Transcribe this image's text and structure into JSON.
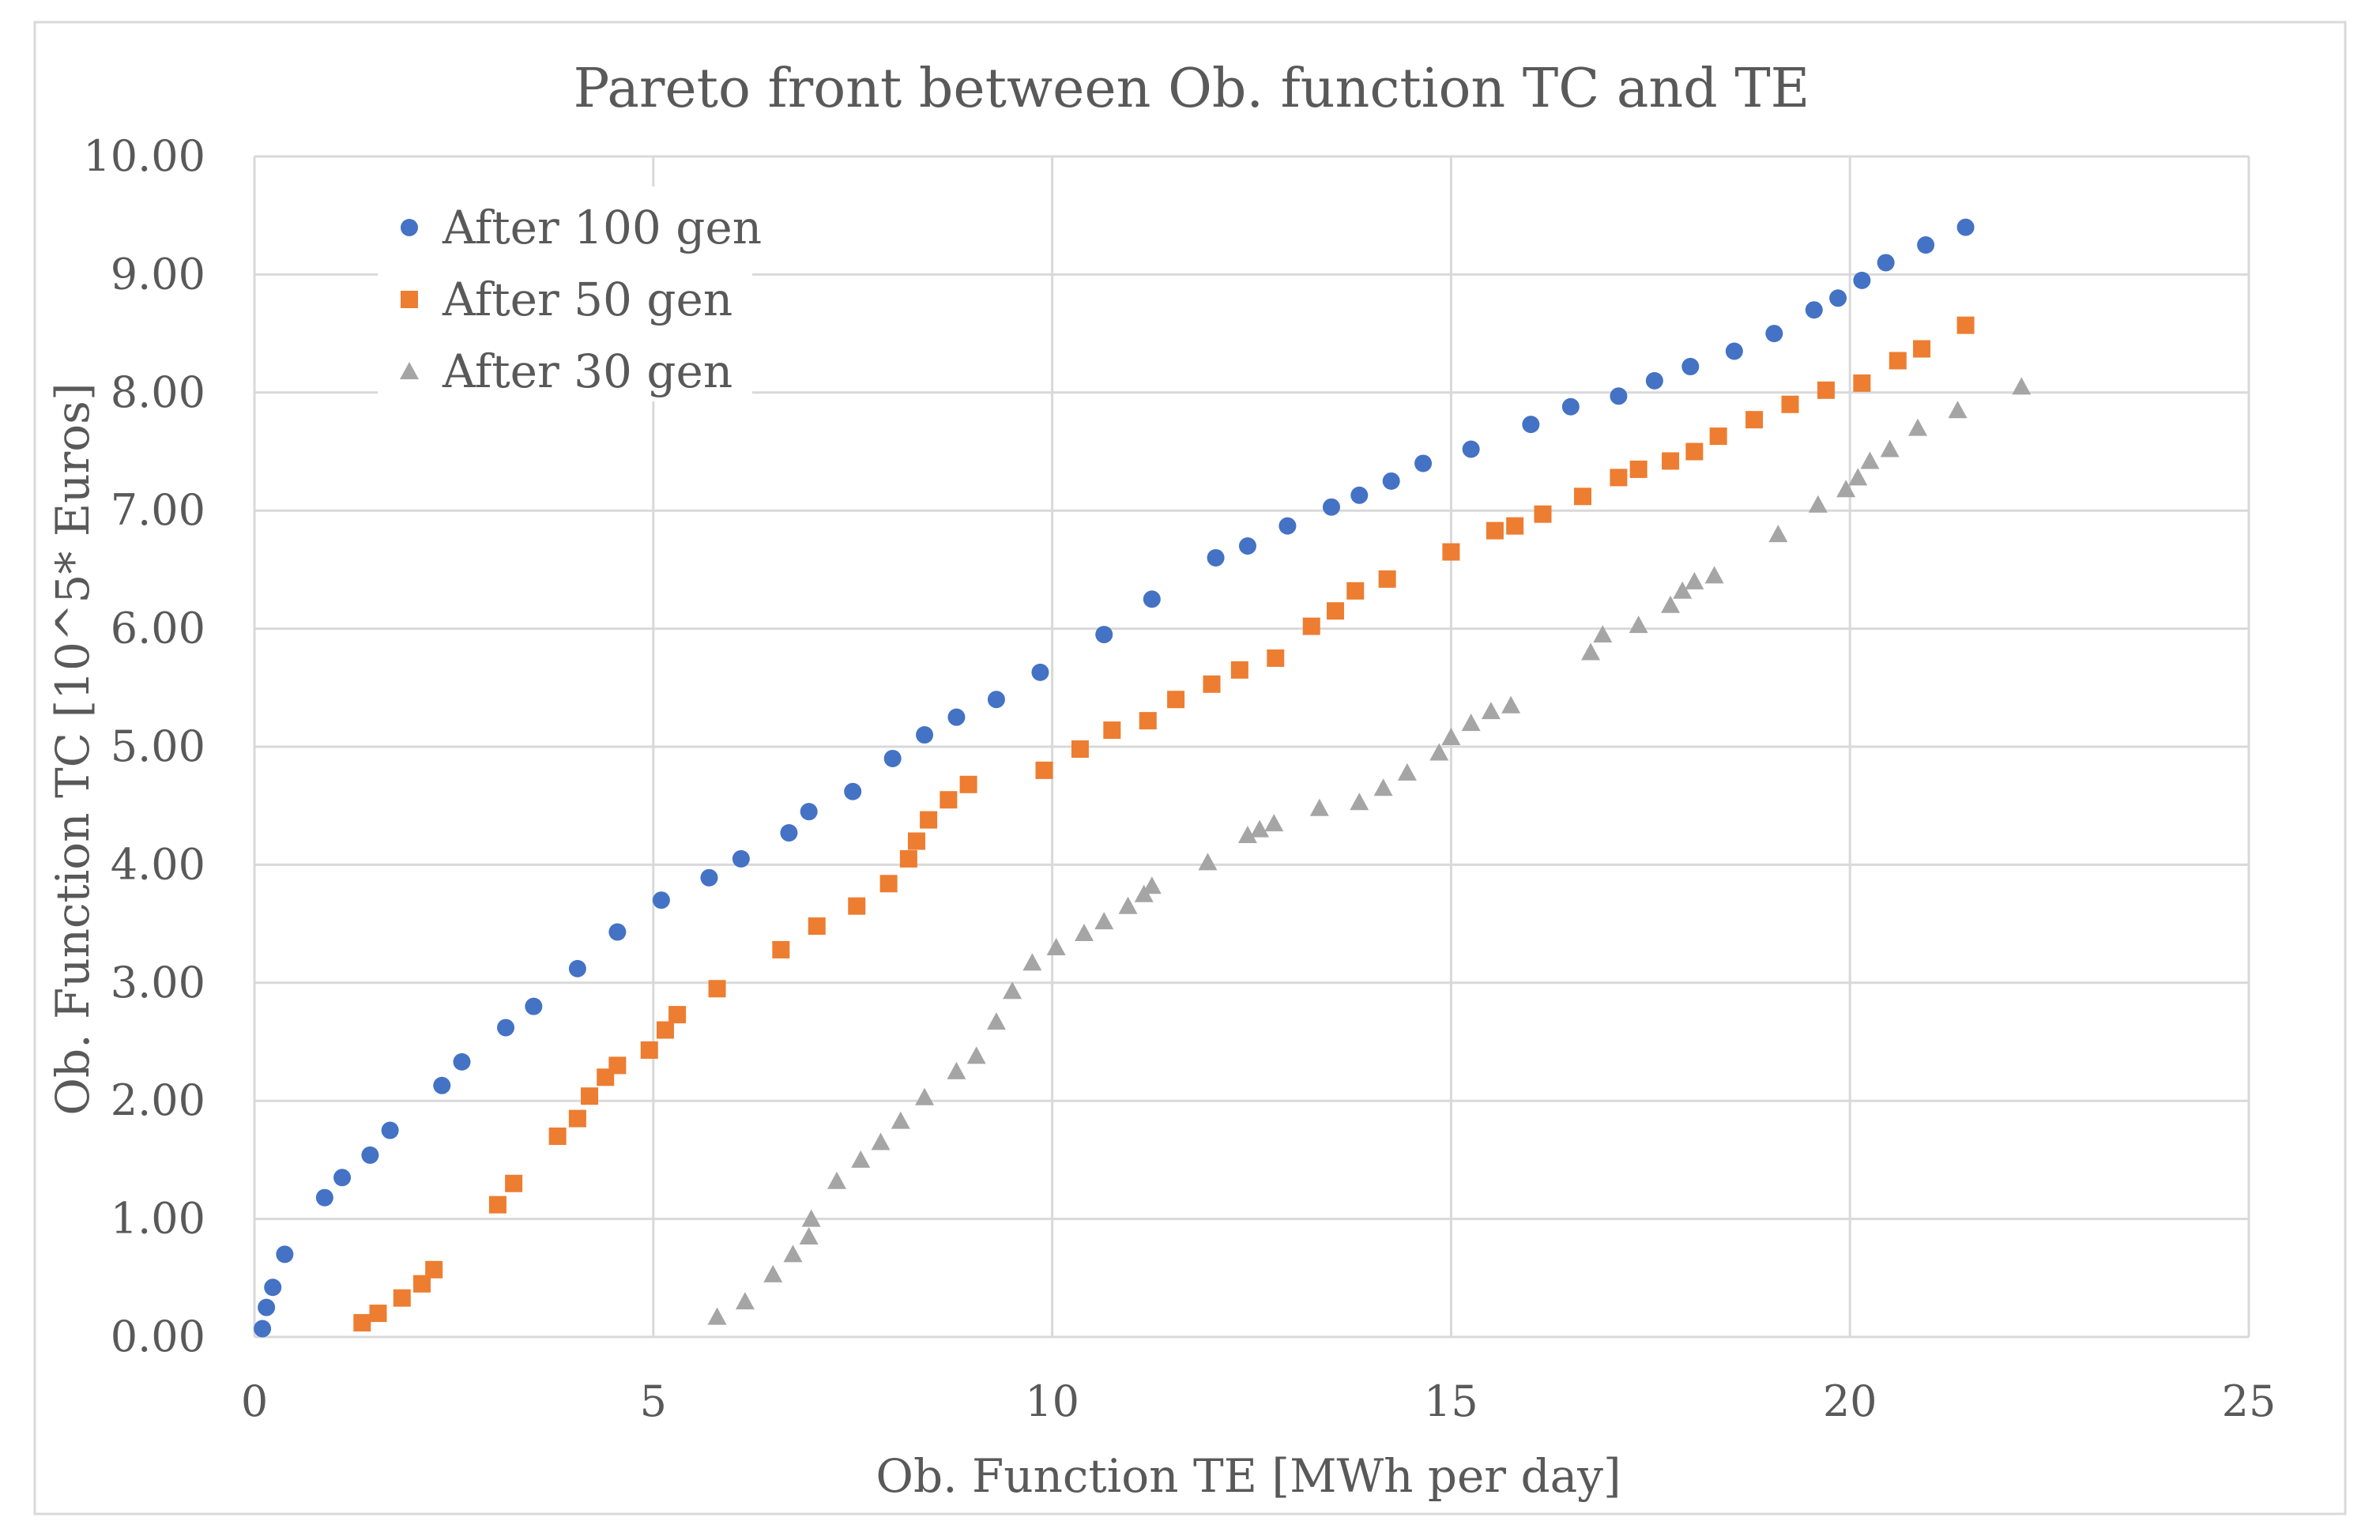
{
  "chart_data": {
    "type": "scatter",
    "title": "Pareto front between Ob. function TC and TE",
    "xlabel": "Ob. Function TE [MWh per day]",
    "ylabel": "Ob. Function TC [10^5* Euros]",
    "xlim": [
      0,
      25
    ],
    "ylim": [
      0,
      10
    ],
    "x_ticks": [
      0,
      5,
      10,
      15,
      20,
      25
    ],
    "x_tick_labels": [
      "0",
      "5",
      "10",
      "15",
      "20",
      "25"
    ],
    "y_ticks": [
      0,
      1,
      2,
      3,
      4,
      5,
      6,
      7,
      8,
      9,
      10
    ],
    "y_tick_labels": [
      "0.00",
      "1.00",
      "2.00",
      "3.00",
      "4.00",
      "5.00",
      "6.00",
      "7.00",
      "8.00",
      "9.00",
      "10.00"
    ],
    "grid": true,
    "legend_position": "top-left",
    "series": [
      {
        "name": "After 100 gen",
        "marker": "circle",
        "color": "#4472C4",
        "points": [
          [
            0.1,
            0.07
          ],
          [
            0.15,
            0.25
          ],
          [
            0.23,
            0.42
          ],
          [
            0.38,
            0.7
          ],
          [
            0.88,
            1.18
          ],
          [
            1.1,
            1.35
          ],
          [
            1.45,
            1.54
          ],
          [
            1.7,
            1.75
          ],
          [
            2.35,
            2.13
          ],
          [
            2.6,
            2.33
          ],
          [
            3.15,
            2.62
          ],
          [
            3.5,
            2.8
          ],
          [
            4.05,
            3.12
          ],
          [
            4.55,
            3.43
          ],
          [
            5.1,
            3.7
          ],
          [
            5.7,
            3.89
          ],
          [
            6.1,
            4.05
          ],
          [
            6.7,
            4.27
          ],
          [
            6.95,
            4.45
          ],
          [
            7.5,
            4.62
          ],
          [
            8.0,
            4.9
          ],
          [
            8.4,
            5.1
          ],
          [
            8.8,
            5.25
          ],
          [
            9.3,
            5.4
          ],
          [
            9.85,
            5.63
          ],
          [
            10.65,
            5.95
          ],
          [
            11.25,
            6.25
          ],
          [
            12.05,
            6.6
          ],
          [
            12.45,
            6.7
          ],
          [
            12.95,
            6.87
          ],
          [
            13.5,
            7.03
          ],
          [
            13.85,
            7.13
          ],
          [
            14.25,
            7.25
          ],
          [
            14.65,
            7.4
          ],
          [
            15.25,
            7.52
          ],
          [
            16.0,
            7.73
          ],
          [
            16.5,
            7.88
          ],
          [
            17.1,
            7.97
          ],
          [
            17.55,
            8.1
          ],
          [
            18.0,
            8.22
          ],
          [
            18.55,
            8.35
          ],
          [
            19.05,
            8.5
          ],
          [
            19.55,
            8.7
          ],
          [
            19.85,
            8.8
          ],
          [
            20.15,
            8.95
          ],
          [
            20.45,
            9.1
          ],
          [
            20.95,
            9.25
          ],
          [
            21.45,
            9.4
          ]
        ]
      },
      {
        "name": "After 50 gen",
        "marker": "square",
        "color": "#ED7D31",
        "points": [
          [
            1.35,
            0.12
          ],
          [
            1.55,
            0.2
          ],
          [
            1.85,
            0.33
          ],
          [
            2.1,
            0.45
          ],
          [
            2.25,
            0.57
          ],
          [
            3.05,
            1.12
          ],
          [
            3.25,
            1.3
          ],
          [
            3.8,
            1.7
          ],
          [
            4.05,
            1.85
          ],
          [
            4.2,
            2.04
          ],
          [
            4.4,
            2.2
          ],
          [
            4.55,
            2.3
          ],
          [
            4.95,
            2.43
          ],
          [
            5.15,
            2.6
          ],
          [
            5.3,
            2.73
          ],
          [
            5.8,
            2.95
          ],
          [
            6.6,
            3.28
          ],
          [
            7.05,
            3.48
          ],
          [
            7.55,
            3.65
          ],
          [
            7.95,
            3.84
          ],
          [
            8.2,
            4.05
          ],
          [
            8.3,
            4.2
          ],
          [
            8.45,
            4.38
          ],
          [
            8.7,
            4.55
          ],
          [
            8.95,
            4.68
          ],
          [
            9.9,
            4.8
          ],
          [
            10.35,
            4.98
          ],
          [
            10.75,
            5.14
          ],
          [
            11.2,
            5.22
          ],
          [
            11.55,
            5.4
          ],
          [
            12.0,
            5.53
          ],
          [
            12.35,
            5.65
          ],
          [
            12.8,
            5.75
          ],
          [
            13.25,
            6.02
          ],
          [
            13.55,
            6.15
          ],
          [
            13.8,
            6.32
          ],
          [
            14.2,
            6.42
          ],
          [
            15.0,
            6.65
          ],
          [
            15.55,
            6.83
          ],
          [
            15.8,
            6.87
          ],
          [
            16.15,
            6.97
          ],
          [
            16.65,
            7.12
          ],
          [
            17.1,
            7.28
          ],
          [
            17.35,
            7.35
          ],
          [
            17.75,
            7.42
          ],
          [
            18.05,
            7.5
          ],
          [
            18.35,
            7.63
          ],
          [
            18.8,
            7.77
          ],
          [
            19.25,
            7.9
          ],
          [
            19.7,
            8.02
          ],
          [
            20.15,
            8.08
          ],
          [
            20.6,
            8.27
          ],
          [
            20.9,
            8.37
          ],
          [
            21.45,
            8.57
          ]
        ]
      },
      {
        "name": "After 30 gen",
        "marker": "triangle",
        "color": "#A5A5A5",
        "points": [
          [
            5.8,
            0.17
          ],
          [
            6.15,
            0.3
          ],
          [
            6.5,
            0.53
          ],
          [
            6.75,
            0.7
          ],
          [
            6.95,
            0.85
          ],
          [
            6.98,
            1.0
          ],
          [
            7.3,
            1.32
          ],
          [
            7.6,
            1.5
          ],
          [
            7.85,
            1.65
          ],
          [
            8.1,
            1.83
          ],
          [
            8.4,
            2.03
          ],
          [
            8.8,
            2.25
          ],
          [
            9.05,
            2.38
          ],
          [
            9.3,
            2.67
          ],
          [
            9.5,
            2.93
          ],
          [
            9.75,
            3.17
          ],
          [
            10.05,
            3.3
          ],
          [
            10.4,
            3.42
          ],
          [
            10.65,
            3.52
          ],
          [
            10.95,
            3.65
          ],
          [
            11.15,
            3.75
          ],
          [
            11.25,
            3.82
          ],
          [
            11.95,
            4.02
          ],
          [
            12.45,
            4.25
          ],
          [
            12.6,
            4.3
          ],
          [
            12.78,
            4.35
          ],
          [
            13.35,
            4.48
          ],
          [
            13.85,
            4.53
          ],
          [
            14.15,
            4.65
          ],
          [
            14.45,
            4.78
          ],
          [
            14.85,
            4.95
          ],
          [
            15.0,
            5.08
          ],
          [
            15.25,
            5.2
          ],
          [
            15.5,
            5.3
          ],
          [
            15.75,
            5.35
          ],
          [
            16.75,
            5.8
          ],
          [
            16.9,
            5.95
          ],
          [
            17.35,
            6.03
          ],
          [
            17.75,
            6.2
          ],
          [
            17.9,
            6.32
          ],
          [
            18.05,
            6.4
          ],
          [
            18.3,
            6.45
          ],
          [
            19.1,
            6.8
          ],
          [
            19.6,
            7.05
          ],
          [
            19.95,
            7.18
          ],
          [
            20.1,
            7.28
          ],
          [
            20.25,
            7.42
          ],
          [
            20.5,
            7.52
          ],
          [
            20.85,
            7.7
          ],
          [
            21.35,
            7.85
          ],
          [
            22.15,
            8.05
          ]
        ]
      }
    ]
  }
}
